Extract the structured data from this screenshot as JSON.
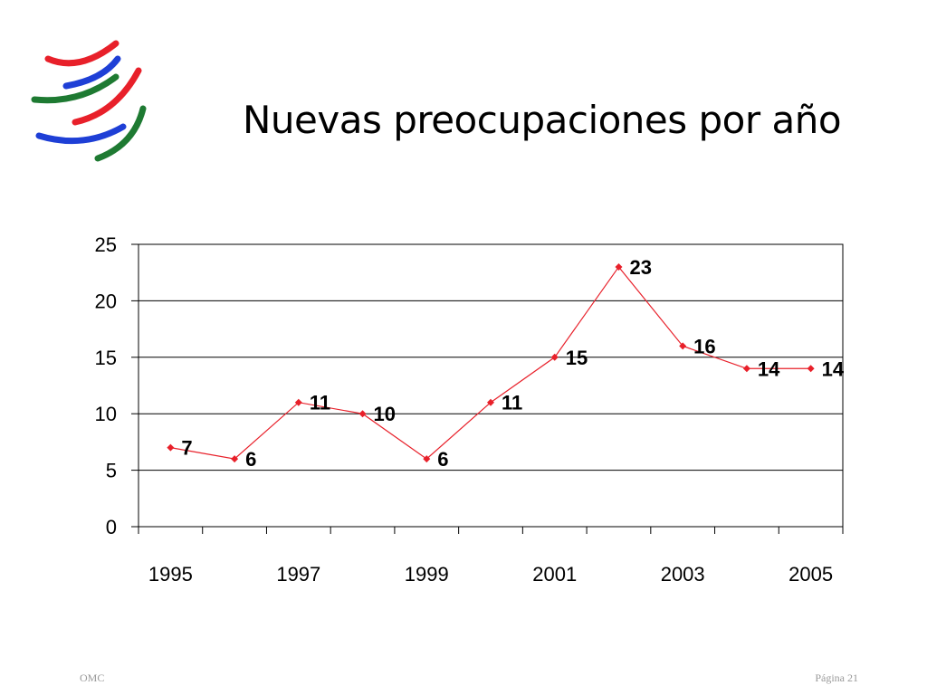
{
  "slide": {
    "title": "Nuevas preocupaciones por año",
    "footer_left": "OMC",
    "footer_right": "Página 21"
  },
  "logo": {
    "name": "wto-logo",
    "colors": [
      "#e8202a",
      "#1e3fd6",
      "#1e7a32"
    ]
  },
  "chart_data": {
    "type": "line",
    "title": "",
    "xlabel": "",
    "ylabel": "",
    "x": [
      "1995",
      "1996",
      "1997",
      "1998",
      "1999",
      "2000",
      "2001",
      "2002",
      "2003",
      "2004",
      "2005"
    ],
    "x_tick_labels": [
      "1995",
      "1997",
      "1999",
      "2001",
      "2003",
      "2005"
    ],
    "series": [
      {
        "values": [
          7,
          6,
          11,
          10,
          6,
          11,
          15,
          23,
          16,
          14,
          14
        ],
        "color": "#e8202a"
      }
    ],
    "data_labels": [
      "7",
      "6",
      "11",
      "10",
      "6",
      "11",
      "15",
      "23",
      "16",
      "14",
      "14"
    ],
    "ylim": [
      0,
      25
    ],
    "y_ticks": [
      "0",
      "5",
      "10",
      "15",
      "20",
      "25"
    ],
    "grid": true,
    "legend": "none"
  }
}
